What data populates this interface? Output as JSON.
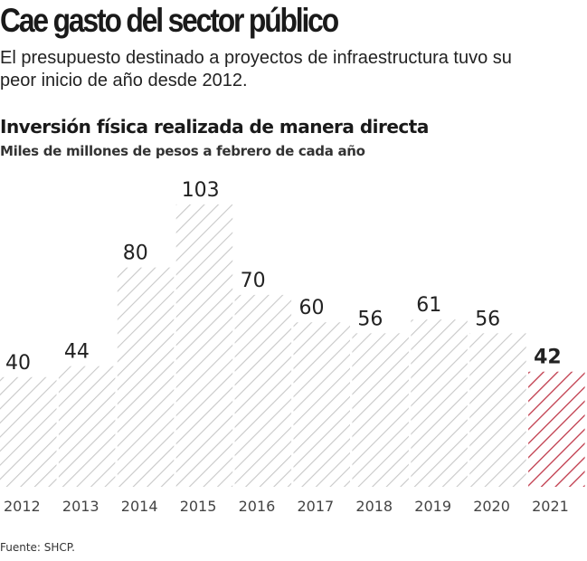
{
  "header": {
    "title": "Cae gasto del sector público",
    "subtitle": "El presupuesto destinado a proyectos de infraestructura tuvo su peor inicio de año desde 2012."
  },
  "chart_data": {
    "type": "bar",
    "title": "Inversión física realizada de manera directa",
    "ylabel": "Miles de millones de pesos a febrero de cada año",
    "xlabel": "",
    "categories": [
      "2012",
      "2013",
      "2014",
      "2015",
      "2016",
      "2017",
      "2018",
      "2019",
      "2020",
      "2021"
    ],
    "values": [
      40,
      44,
      80,
      103,
      70,
      60,
      56,
      61,
      56,
      42
    ],
    "highlight": "2021",
    "ylim": [
      0,
      110
    ],
    "grid": false,
    "colors": {
      "bar": "#c8c8c8",
      "highlight": "#c0394a",
      "label": "#222222"
    }
  },
  "footer": {
    "source": "Fuente: SHCP."
  }
}
